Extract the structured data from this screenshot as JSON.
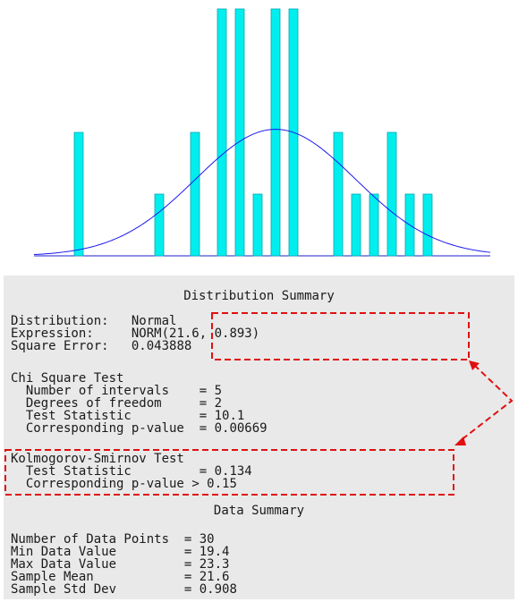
{
  "chart_data": {
    "type": "bar",
    "title": "",
    "xlabel": "",
    "ylabel": "",
    "grid": false,
    "bar_color": "#00eeee",
    "curve_color": "#1a1aee",
    "x": [
      19.4,
      20.3,
      20.7,
      21.0,
      21.2,
      21.4,
      21.6,
      21.8,
      22.3,
      22.5,
      22.7,
      22.9,
      23.1,
      23.3
    ],
    "values": [
      2,
      1,
      2,
      4,
      4,
      1,
      4,
      4,
      2,
      1,
      1,
      2,
      1,
      1
    ],
    "curve": {
      "distribution": "Normal",
      "mean": 21.6,
      "sd": 0.893
    }
  },
  "summary": {
    "title": "Distribution Summary",
    "distribution_label": "Distribution:",
    "distribution_value": "Normal",
    "expression_label": "Expression:",
    "expression_value": "NORM(21.6, 0.893)",
    "square_error_label": "Square Error:",
    "square_error_value": "0.043888",
    "chi_square": {
      "title": "Chi Square Test",
      "intervals_label": "Number of intervals",
      "intervals_value": "= 5",
      "dof_label": "Degrees of freedom",
      "dof_value": "= 2",
      "stat_label": "Test Statistic",
      "stat_value": "= 10.1",
      "p_label": "Corresponding p-value",
      "p_value": "= 0.00669"
    },
    "ks": {
      "title": "Kolmogorov-Smirnov Test",
      "stat_label": "Test Statistic",
      "stat_value": "= 0.134",
      "p_label": "Corresponding p-value",
      "p_value": "> 0.15"
    }
  },
  "data_summary": {
    "title": "Data Summary",
    "n_label": "Number of Data Points",
    "n_value": "= 30",
    "min_label": "Min Data Value",
    "min_value": "= 19.4",
    "max_label": "Max Data Value",
    "max_value": "= 23.3",
    "mean_label": "Sample Mean",
    "mean_value": "= 21.6",
    "sd_label": "Sample Std Dev",
    "sd_value": "= 0.908"
  },
  "annotation_color": "#e01010"
}
